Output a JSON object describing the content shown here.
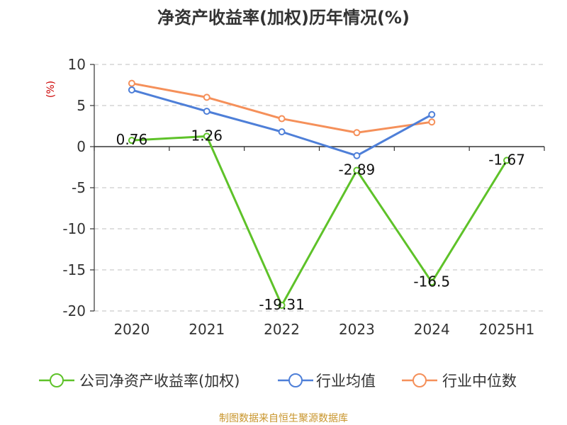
{
  "chart_data": {
    "type": "line",
    "title": "净资产收益率(加权)历年情况(%)",
    "ylabel": "(%)",
    "categories": [
      "2020",
      "2021",
      "2022",
      "2023",
      "2024",
      "2025H1"
    ],
    "ylim": [
      -20,
      10
    ],
    "yticks": [
      "10",
      "5",
      "0",
      "-5",
      "-10",
      "-15",
      "-20"
    ],
    "grid": true,
    "legend_position": "bottom",
    "series": [
      {
        "name": "公司净资产收益率(加权)",
        "color": "#5ec229",
        "values": [
          0.76,
          1.26,
          -19.31,
          -2.89,
          -16.5,
          -1.67
        ],
        "labels": [
          "0.76",
          "1.26",
          "-19.31",
          "-2.89",
          "-16.5",
          "-1.67"
        ]
      },
      {
        "name": "行业均值",
        "color": "#4e7fd8",
        "values": [
          6.9,
          4.3,
          1.8,
          -1.1,
          3.9,
          null
        ]
      },
      {
        "name": "行业中位数",
        "color": "#f5905a",
        "values": [
          7.7,
          6.0,
          3.4,
          1.7,
          3.0,
          null
        ]
      }
    ],
    "source": "制图数据来自恒生聚源数据库"
  }
}
